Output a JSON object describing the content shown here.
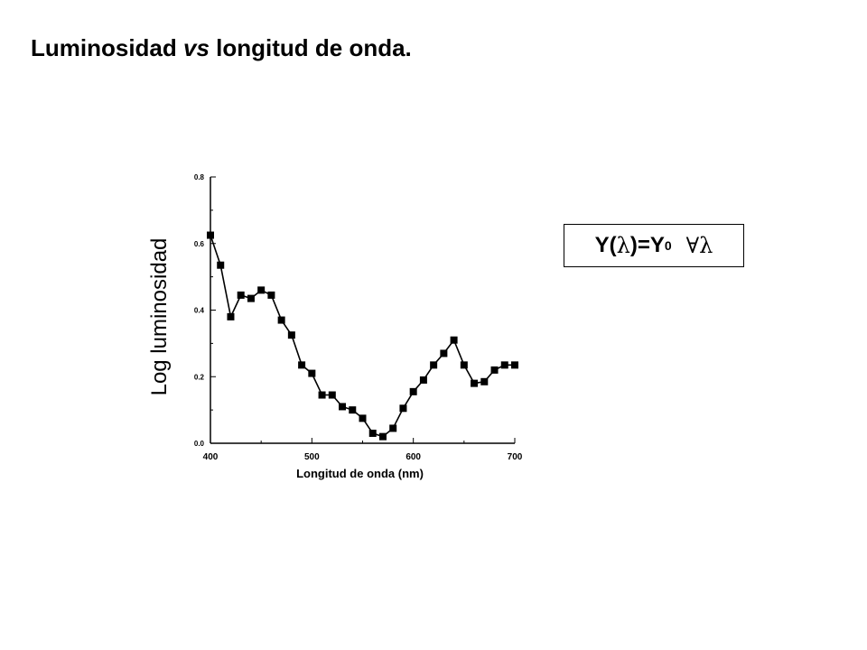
{
  "slide": {
    "title_a": "Luminosidad ",
    "title_vs": "vs",
    "title_b": " longitud de onda."
  },
  "formula": {
    "y_open": "Y(",
    "lambda": "λ",
    "eq": ")=Y",
    "sub": "0",
    "forall": "∀",
    "lambda2": "λ"
  },
  "chart_data": {
    "type": "line",
    "xlabel": "Longitud de onda (nm)",
    "ylabel": "Log luminosidad",
    "xlim": [
      400,
      700
    ],
    "ylim": [
      0.0,
      0.8
    ],
    "x_ticks": [
      "400",
      "500",
      "600",
      "700"
    ],
    "y_ticks": [
      "0.0",
      "0.2",
      "0.4",
      "0.6",
      "0.8"
    ],
    "marker": "square",
    "series": [
      {
        "x": [
          400,
          410,
          420,
          430,
          440,
          450,
          460,
          470,
          480,
          490,
          500,
          510,
          520,
          530,
          540,
          550,
          560,
          570,
          580,
          590,
          600,
          610,
          620,
          630,
          640,
          650,
          660,
          670,
          680,
          690,
          700
        ],
        "y": [
          0.625,
          0.535,
          0.38,
          0.445,
          0.435,
          0.46,
          0.445,
          0.37,
          0.325,
          0.235,
          0.21,
          0.145,
          0.145,
          0.11,
          0.1,
          0.075,
          0.03,
          0.02,
          0.045,
          0.105,
          0.155,
          0.19,
          0.235,
          0.27,
          0.31,
          0.235,
          0.18,
          0.185,
          0.22,
          0.235,
          0.235
        ]
      }
    ]
  }
}
